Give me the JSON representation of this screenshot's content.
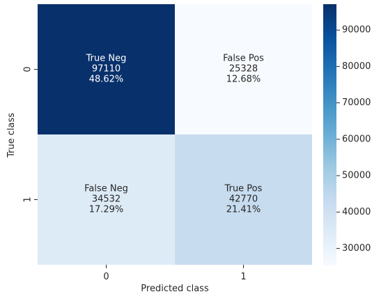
{
  "chart_data": {
    "type": "heatmap",
    "xlabel": "Predicted class",
    "ylabel": "True class",
    "x_categories": [
      "0",
      "1"
    ],
    "y_categories": [
      "0",
      "1"
    ],
    "cells": [
      {
        "row": 0,
        "col": 0,
        "label": "True Neg",
        "value": 97110,
        "percent": "48.62%"
      },
      {
        "row": 0,
        "col": 1,
        "label": "False Pos",
        "value": 25328,
        "percent": "12.68%"
      },
      {
        "row": 1,
        "col": 0,
        "label": "False Neg",
        "value": 34532,
        "percent": "17.29%"
      },
      {
        "row": 1,
        "col": 1,
        "label": "True Pos",
        "value": 42770,
        "percent": "21.41%"
      }
    ],
    "colormap": "Blues",
    "colorbar": {
      "min": 25328,
      "max": 97110,
      "ticks": [
        30000,
        40000,
        50000,
        60000,
        70000,
        80000,
        90000
      ]
    }
  }
}
